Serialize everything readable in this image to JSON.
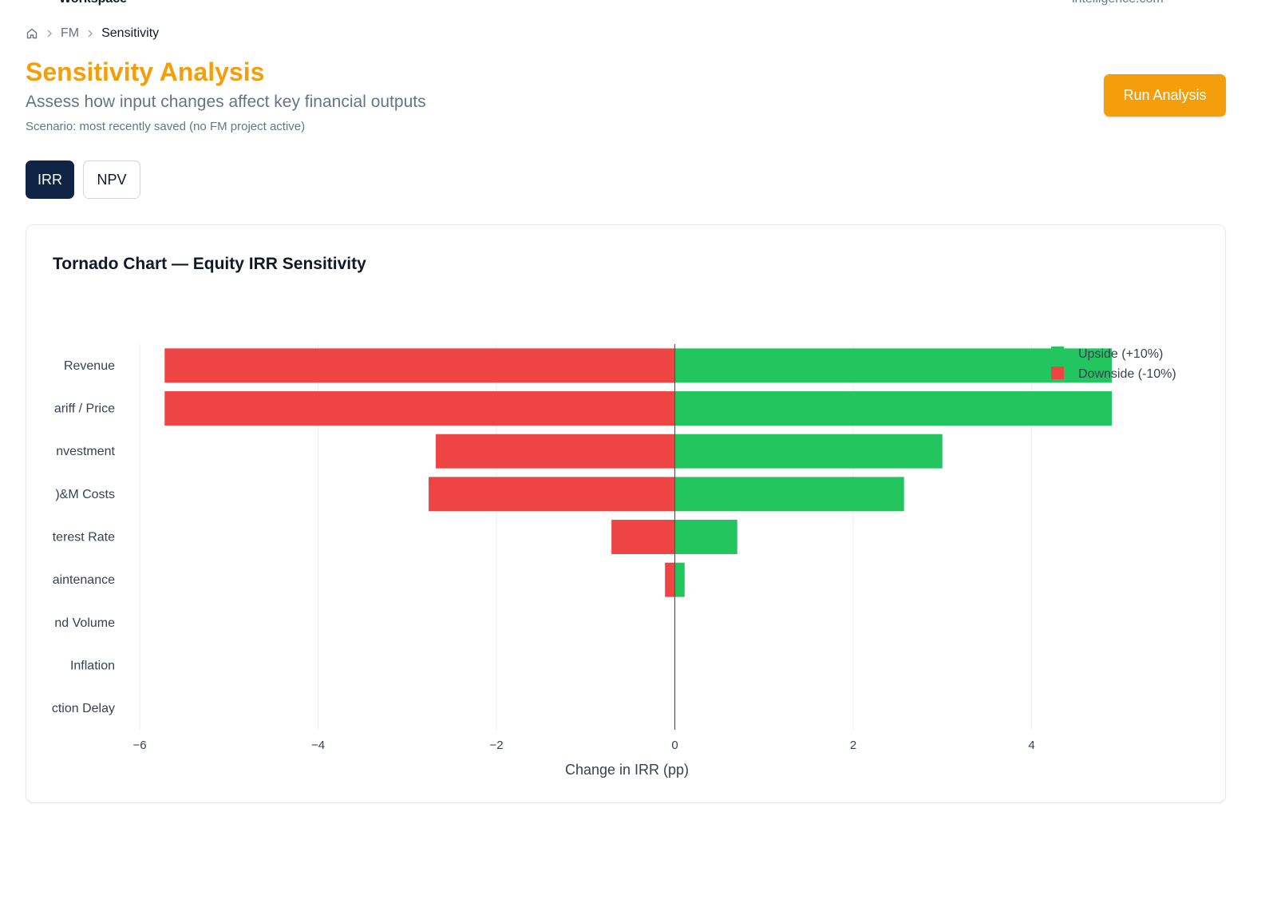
{
  "header": {
    "workspace_label": "Workspace",
    "domain_label": "intelligence.com"
  },
  "breadcrumb": {
    "home_icon": "home-icon",
    "items": [
      "FM",
      "Sensitivity"
    ]
  },
  "page": {
    "title": "Sensitivity Analysis",
    "subtitle": "Assess how input changes affect key financial outputs",
    "scenario_note": "Scenario: most recently saved (no FM project active)",
    "run_button_label": "Run Analysis"
  },
  "tabs": [
    {
      "label": "IRR",
      "active": true
    },
    {
      "label": "NPV",
      "active": false
    }
  ],
  "colors": {
    "accent": "#f59e0b",
    "tab_active": "#0f2344",
    "upside": "#22c55e",
    "downside": "#ef4444"
  },
  "chart_title": "Tornado Chart — Equity IRR Sensitivity",
  "chart_data": {
    "type": "bar",
    "orientation": "horizontal",
    "categories": [
      "Revenue",
      "ariff / Price",
      "nvestment",
      ")&M Costs",
      "terest Rate",
      "aintenance",
      "nd Volume",
      "Inflation",
      "ction Delay"
    ],
    "series": [
      {
        "name": "Upside (+10%)",
        "color": "#22c55e",
        "values": [
          4.9,
          4.9,
          3.0,
          2.57,
          0.7,
          0.11,
          0,
          0,
          0
        ]
      },
      {
        "name": "Downside (-10%)",
        "color": "#ef4444",
        "values": [
          -5.72,
          -5.72,
          -2.68,
          -2.76,
          -0.71,
          -0.11,
          0,
          0,
          0
        ]
      }
    ],
    "xlabel": "Change in IRR (pp)",
    "ylabel": "",
    "xlim": [
      -6,
      6
    ],
    "xticks": [
      -6,
      -4,
      -2,
      0,
      2,
      4
    ],
    "xtick_labels": [
      "−6",
      "−4",
      "−2",
      "0",
      "2",
      "4"
    ],
    "grid": true,
    "legend_position": "top-right"
  }
}
